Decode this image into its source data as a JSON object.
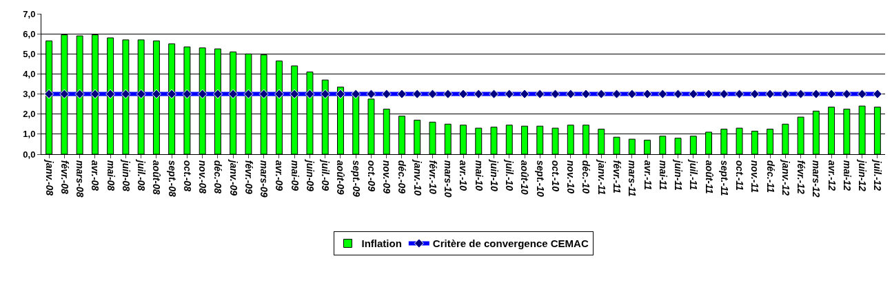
{
  "chart_data": {
    "type": "bar",
    "categories": [
      "janv.-08",
      "févr.-08",
      "mars-08",
      "avr.-08",
      "mai-08",
      "juin-08",
      "juil.-08",
      "août-08",
      "sept.-08",
      "oct.-08",
      "nov.-08",
      "déc.-08",
      "janv.-09",
      "févr.-09",
      "mars-09",
      "avr.-09",
      "mai-09",
      "juin-09",
      "juil.-09",
      "août-09",
      "sept.-09",
      "oct.-09",
      "nov.-09",
      "déc.-09",
      "janv.-10",
      "févr.-10",
      "mars-10",
      "avr.-10",
      "mai-10",
      "juin-10",
      "juil.-10",
      "août-10",
      "sept.-10",
      "oct.-10",
      "nov.-10",
      "déc.-10",
      "janv.-11",
      "févr.-11",
      "mars-11",
      "avr.-11",
      "mai-11",
      "juin-11",
      "juil.-11",
      "août-11",
      "sept.-11",
      "oct.-11",
      "nov.-11",
      "déc.-11",
      "janv.-12",
      "févr.-12",
      "mars-12",
      "avr.-12",
      "mai-12",
      "juin-12",
      "juil.-12"
    ],
    "series": [
      {
        "name": "Inflation",
        "color": "#00ff00",
        "values": [
          5.65,
          5.95,
          5.9,
          5.95,
          5.8,
          5.7,
          5.7,
          5.65,
          5.5,
          5.35,
          5.3,
          5.25,
          5.1,
          5.0,
          4.95,
          4.65,
          4.4,
          4.1,
          3.7,
          3.35,
          3.0,
          2.75,
          2.25,
          1.9,
          1.7,
          1.6,
          1.5,
          1.45,
          1.3,
          1.35,
          1.45,
          1.4,
          1.4,
          1.3,
          1.45,
          1.45,
          1.25,
          0.85,
          0.75,
          0.7,
          0.9,
          0.8,
          0.9,
          1.1,
          1.25,
          1.3,
          1.15,
          1.25,
          1.5,
          1.85,
          2.15,
          2.35,
          2.25,
          2.4,
          2.35
        ]
      },
      {
        "name": "Critère de convergence CEMAC",
        "type": "line",
        "color": "#0000ff",
        "marker": "diamond",
        "values": [
          3,
          3,
          3,
          3,
          3,
          3,
          3,
          3,
          3,
          3,
          3,
          3,
          3,
          3,
          3,
          3,
          3,
          3,
          3,
          3,
          3,
          3,
          3,
          3,
          3,
          3,
          3,
          3,
          3,
          3,
          3,
          3,
          3,
          3,
          3,
          3,
          3,
          3,
          3,
          3,
          3,
          3,
          3,
          3,
          3,
          3,
          3,
          3,
          3,
          3,
          3,
          3,
          3,
          3,
          3
        ]
      }
    ],
    "ylim": [
      0,
      7
    ],
    "yticks": [
      {
        "value": 0,
        "label": "0,0"
      },
      {
        "value": 1,
        "label": "1,0"
      },
      {
        "value": 2,
        "label": "2,0"
      },
      {
        "value": 3,
        "label": "3,0"
      },
      {
        "value": 4,
        "label": "4,0"
      },
      {
        "value": 5,
        "label": "5,0"
      },
      {
        "value": 6,
        "label": "6,0"
      },
      {
        "value": 7,
        "label": "7,0"
      }
    ],
    "grid": "y",
    "legend": "bottom"
  }
}
